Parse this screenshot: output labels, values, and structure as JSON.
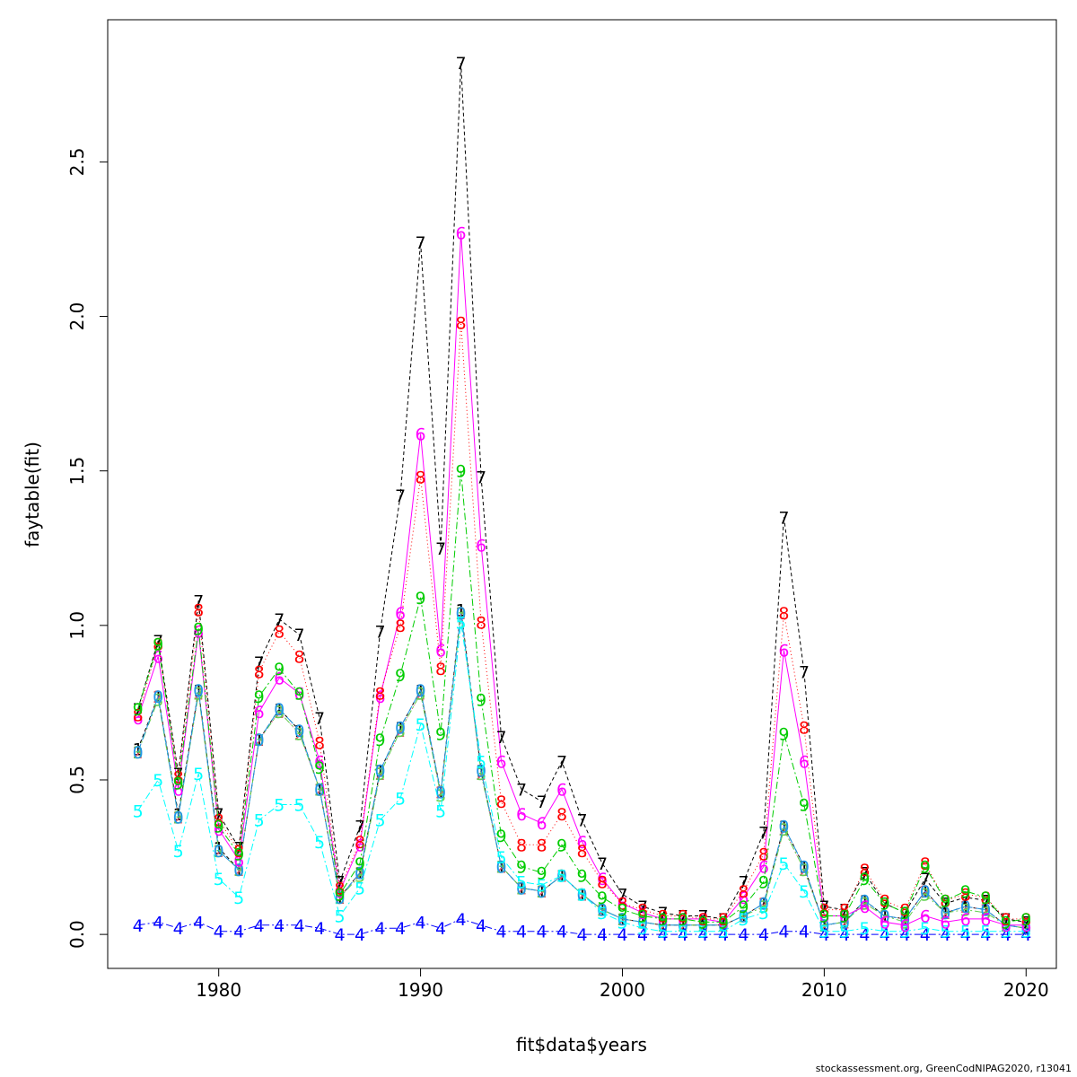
{
  "chart_data": {
    "type": "line",
    "xlabel": "fit$data$years",
    "ylabel": "faytable(fit)",
    "xlim": [
      1974.5,
      2021.5
    ],
    "ylim": [
      -0.11,
      2.96
    ],
    "x_ticks": [
      1980,
      1990,
      2000,
      2010,
      2020
    ],
    "y_ticks": [
      0.0,
      0.5,
      1.0,
      1.5,
      2.0,
      2.5
    ],
    "y_tick_labels": [
      "0.0",
      "0.5",
      "1.0",
      "1.5",
      "2.0",
      "2.5"
    ],
    "x": [
      1976,
      1977,
      1978,
      1979,
      1980,
      1981,
      1982,
      1983,
      1984,
      1985,
      1986,
      1987,
      1988,
      1989,
      1990,
      1991,
      1992,
      1993,
      1994,
      1995,
      1996,
      1997,
      1998,
      1999,
      2000,
      2001,
      2002,
      2003,
      2004,
      2005,
      2006,
      2007,
      2008,
      2009,
      2010,
      2011,
      2012,
      2013,
      2014,
      2015,
      2016,
      2017,
      2018,
      2019,
      2020
    ],
    "series": [
      {
        "name": "1",
        "color": "#000000",
        "dash": "4,3",
        "values": [
          0.6,
          0.77,
          0.39,
          0.79,
          0.28,
          0.21,
          0.63,
          0.73,
          0.66,
          0.47,
          0.12,
          0.2,
          0.53,
          0.67,
          0.79,
          0.46,
          1.05,
          0.53,
          0.22,
          0.15,
          0.14,
          0.19,
          0.13,
          0.08,
          0.05,
          0.04,
          0.03,
          0.03,
          0.03,
          0.03,
          0.06,
          0.1,
          0.35,
          0.22,
          0.03,
          0.04,
          0.11,
          0.06,
          0.05,
          0.14,
          0.07,
          0.09,
          0.08,
          0.03,
          0.02
        ]
      },
      {
        "name": "2",
        "color": "#DF536B",
        "dash": "1,3",
        "values": [
          0.59,
          0.77,
          0.38,
          0.78,
          0.27,
          0.21,
          0.63,
          0.72,
          0.65,
          0.47,
          0.12,
          0.2,
          0.52,
          0.66,
          0.78,
          0.46,
          1.04,
          0.52,
          0.22,
          0.15,
          0.14,
          0.19,
          0.13,
          0.08,
          0.05,
          0.04,
          0.03,
          0.03,
          0.03,
          0.03,
          0.06,
          0.1,
          0.34,
          0.21,
          0.03,
          0.04,
          0.1,
          0.06,
          0.05,
          0.14,
          0.07,
          0.09,
          0.08,
          0.03,
          0.02
        ]
      },
      {
        "name": "3",
        "color": "#61D04F",
        "dash": "8,3,2,3",
        "values": [
          0.59,
          0.76,
          0.38,
          0.78,
          0.27,
          0.21,
          0.63,
          0.72,
          0.65,
          0.47,
          0.12,
          0.19,
          0.52,
          0.66,
          0.78,
          0.45,
          1.04,
          0.52,
          0.22,
          0.15,
          0.14,
          0.19,
          0.13,
          0.08,
          0.05,
          0.04,
          0.03,
          0.03,
          0.03,
          0.03,
          0.06,
          0.09,
          0.34,
          0.21,
          0.03,
          0.04,
          0.1,
          0.06,
          0.04,
          0.13,
          0.07,
          0.08,
          0.07,
          0.03,
          0.02
        ]
      },
      {
        "name": "0",
        "color": "#2297E6",
        "dash": "10,4",
        "values": [
          0.59,
          0.77,
          0.38,
          0.79,
          0.27,
          0.21,
          0.63,
          0.73,
          0.66,
          0.47,
          0.12,
          0.2,
          0.53,
          0.67,
          0.79,
          0.46,
          1.04,
          0.53,
          0.22,
          0.15,
          0.14,
          0.19,
          0.13,
          0.08,
          0.05,
          0.04,
          0.03,
          0.03,
          0.03,
          0.03,
          0.06,
          0.1,
          0.35,
          0.22,
          0.03,
          0.04,
          0.11,
          0.06,
          0.05,
          0.14,
          0.07,
          0.09,
          0.08,
          0.03,
          0.02
        ]
      },
      {
        "name": "4",
        "color": "#0000FF",
        "dash": "8,3,2,3",
        "values": [
          0.03,
          0.04,
          0.02,
          0.04,
          0.01,
          0.01,
          0.03,
          0.03,
          0.03,
          0.02,
          0.0,
          0.0,
          0.02,
          0.02,
          0.04,
          0.02,
          0.05,
          0.03,
          0.01,
          0.01,
          0.01,
          0.01,
          0.0,
          0.0,
          0.0,
          0.0,
          0.0,
          0.0,
          0.0,
          0.0,
          0.0,
          0.0,
          0.01,
          0.01,
          0.0,
          0.0,
          0.0,
          0.0,
          0.0,
          0.0,
          0.0,
          0.0,
          0.0,
          0.0,
          0.0
        ]
      },
      {
        "name": "5",
        "color": "#00FFFF",
        "dash": "8,3,2,3",
        "values": [
          0.4,
          0.5,
          0.27,
          0.52,
          0.18,
          0.12,
          0.37,
          0.42,
          0.42,
          0.3,
          0.06,
          0.15,
          0.37,
          0.44,
          0.68,
          0.4,
          1.01,
          0.56,
          0.25,
          0.17,
          0.16,
          0.19,
          0.13,
          0.07,
          0.04,
          0.02,
          0.01,
          0.01,
          0.01,
          0.01,
          0.05,
          0.07,
          0.23,
          0.14,
          0.01,
          0.01,
          0.02,
          0.01,
          0.01,
          0.02,
          0.01,
          0.01,
          0.01,
          0.01,
          0.01
        ]
      },
      {
        "name": "6",
        "color": "#FF00FF",
        "dash": "",
        "values": [
          0.7,
          0.9,
          0.47,
          0.98,
          0.34,
          0.24,
          0.72,
          0.83,
          0.78,
          0.56,
          0.14,
          0.29,
          0.77,
          1.04,
          1.62,
          0.92,
          2.27,
          1.26,
          0.56,
          0.39,
          0.36,
          0.47,
          0.3,
          0.18,
          0.1,
          0.07,
          0.05,
          0.05,
          0.05,
          0.04,
          0.12,
          0.22,
          0.92,
          0.56,
          0.06,
          0.06,
          0.09,
          0.04,
          0.03,
          0.06,
          0.04,
          0.05,
          0.05,
          0.03,
          0.03
        ]
      },
      {
        "name": "7",
        "color": "#000000",
        "dash": "4,3",
        "values": [
          0.73,
          0.95,
          0.52,
          1.08,
          0.39,
          0.28,
          0.88,
          1.02,
          0.97,
          0.7,
          0.17,
          0.35,
          0.98,
          1.42,
          2.24,
          1.25,
          2.82,
          1.48,
          0.64,
          0.47,
          0.43,
          0.56,
          0.37,
          0.23,
          0.13,
          0.09,
          0.07,
          0.06,
          0.06,
          0.05,
          0.17,
          0.33,
          1.35,
          0.85,
          0.09,
          0.08,
          0.2,
          0.1,
          0.07,
          0.18,
          0.1,
          0.12,
          0.11,
          0.05,
          0.04
        ]
      },
      {
        "name": "8",
        "color": "#FF0000",
        "dash": "1,3",
        "values": [
          0.71,
          0.94,
          0.51,
          1.05,
          0.37,
          0.27,
          0.85,
          0.98,
          0.9,
          0.62,
          0.15,
          0.3,
          0.78,
          1.0,
          1.48,
          0.86,
          1.98,
          1.01,
          0.43,
          0.29,
          0.29,
          0.39,
          0.27,
          0.17,
          0.1,
          0.08,
          0.06,
          0.06,
          0.05,
          0.05,
          0.14,
          0.26,
          1.04,
          0.67,
          0.08,
          0.08,
          0.21,
          0.11,
          0.08,
          0.23,
          0.11,
          0.13,
          0.12,
          0.05,
          0.05
        ]
      },
      {
        "name": "9",
        "color": "#00CC00",
        "dash": "8,3,2,3",
        "values": [
          0.73,
          0.94,
          0.49,
          0.99,
          0.35,
          0.26,
          0.77,
          0.86,
          0.78,
          0.54,
          0.13,
          0.23,
          0.63,
          0.84,
          1.09,
          0.65,
          1.5,
          0.76,
          0.32,
          0.22,
          0.2,
          0.29,
          0.19,
          0.12,
          0.08,
          0.06,
          0.05,
          0.05,
          0.04,
          0.04,
          0.09,
          0.17,
          0.65,
          0.42,
          0.06,
          0.06,
          0.18,
          0.1,
          0.07,
          0.22,
          0.11,
          0.14,
          0.12,
          0.04,
          0.05
        ]
      }
    ]
  },
  "footer": "stockassessment.org, GreenCodNIPAG2020, r13041"
}
